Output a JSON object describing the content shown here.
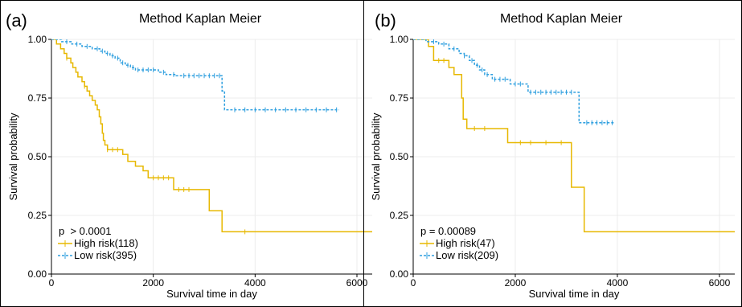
{
  "figure": {
    "panels": [
      {
        "letter": "(a)"
      },
      {
        "letter": "(b)"
      }
    ]
  },
  "colors": {
    "high_risk": "#E7B800",
    "low_risk": "#2E9FDF",
    "grid": "#ececec",
    "axis": "#000000"
  },
  "chart_data": [
    {
      "type": "line",
      "subtype": "kaplan-meier",
      "title": "Method Kaplan Meier",
      "xlabel": "Survival time in day",
      "ylabel": "Survival probability",
      "xlim": [
        0,
        6300
      ],
      "ylim": [
        0,
        1.0
      ],
      "x_ticks": [
        0,
        2000,
        4000,
        6000
      ],
      "x_tick_labels": [
        "0",
        "2000",
        "4000",
        "6000"
      ],
      "y_ticks": [
        0,
        0.25,
        0.5,
        0.75,
        1.0
      ],
      "y_tick_labels": [
        "0.00",
        "0.25",
        "0.50",
        "0.75",
        "1.00"
      ],
      "grid": true,
      "legend_position": "bottom-left",
      "annotation": "p  > 0.0001",
      "series": [
        {
          "name": "High risk(118)",
          "color": "#E7B800",
          "dash": "solid",
          "steps": [
            [
              0,
              1.0
            ],
            [
              100,
              0.98
            ],
            [
              180,
              0.96
            ],
            [
              250,
              0.94
            ],
            [
              300,
              0.92
            ],
            [
              380,
              0.9
            ],
            [
              420,
              0.88
            ],
            [
              480,
              0.86
            ],
            [
              520,
              0.84
            ],
            [
              600,
              0.82
            ],
            [
              650,
              0.8
            ],
            [
              700,
              0.78
            ],
            [
              750,
              0.76
            ],
            [
              800,
              0.74
            ],
            [
              860,
              0.72
            ],
            [
              900,
              0.7
            ],
            [
              940,
              0.67
            ],
            [
              970,
              0.64
            ],
            [
              1000,
              0.6
            ],
            [
              1020,
              0.57
            ],
            [
              1050,
              0.55
            ],
            [
              1100,
              0.53
            ],
            [
              1400,
              0.51
            ],
            [
              1500,
              0.48
            ],
            [
              1650,
              0.46
            ],
            [
              1800,
              0.44
            ],
            [
              1900,
              0.41
            ],
            [
              2400,
              0.36
            ],
            [
              3100,
              0.27
            ],
            [
              3350,
              0.18
            ],
            [
              6300,
              0.18
            ]
          ],
          "censor": [
            [
              300,
              0.92
            ],
            [
              650,
              0.8
            ],
            [
              1100,
              0.53
            ],
            [
              1200,
              0.53
            ],
            [
              1300,
              0.53
            ],
            [
              2000,
              0.41
            ],
            [
              2100,
              0.41
            ],
            [
              2200,
              0.41
            ],
            [
              2300,
              0.41
            ],
            [
              2500,
              0.36
            ],
            [
              2600,
              0.36
            ],
            [
              2700,
              0.36
            ],
            [
              3800,
              0.18
            ]
          ]
        },
        {
          "name": "Low risk(395)",
          "color": "#2E9FDF",
          "dash": "dashed",
          "steps": [
            [
              0,
              1.0
            ],
            [
              200,
              0.99
            ],
            [
              400,
              0.98
            ],
            [
              600,
              0.97
            ],
            [
              800,
              0.96
            ],
            [
              950,
              0.95
            ],
            [
              1050,
              0.94
            ],
            [
              1150,
              0.93
            ],
            [
              1250,
              0.92
            ],
            [
              1350,
              0.9
            ],
            [
              1450,
              0.89
            ],
            [
              1550,
              0.88
            ],
            [
              1650,
              0.87
            ],
            [
              2100,
              0.86
            ],
            [
              2250,
              0.85
            ],
            [
              2450,
              0.845
            ],
            [
              3350,
              0.78
            ],
            [
              3400,
              0.7
            ],
            [
              5650,
              0.7
            ]
          ],
          "censor": [
            [
              300,
              0.99
            ],
            [
              500,
              0.98
            ],
            [
              700,
              0.97
            ],
            [
              900,
              0.96
            ],
            [
              1000,
              0.95
            ],
            [
              1100,
              0.94
            ],
            [
              1200,
              0.93
            ],
            [
              1300,
              0.92
            ],
            [
              1400,
              0.9
            ],
            [
              1500,
              0.89
            ],
            [
              1600,
              0.88
            ],
            [
              1700,
              0.87
            ],
            [
              1800,
              0.87
            ],
            [
              1900,
              0.87
            ],
            [
              2000,
              0.87
            ],
            [
              2200,
              0.86
            ],
            [
              2400,
              0.85
            ],
            [
              2600,
              0.845
            ],
            [
              2700,
              0.845
            ],
            [
              2800,
              0.845
            ],
            [
              2900,
              0.845
            ],
            [
              3000,
              0.845
            ],
            [
              3100,
              0.845
            ],
            [
              3200,
              0.845
            ],
            [
              3300,
              0.845
            ],
            [
              3600,
              0.7
            ],
            [
              3800,
              0.7
            ],
            [
              4000,
              0.7
            ],
            [
              4200,
              0.7
            ],
            [
              4400,
              0.7
            ],
            [
              4600,
              0.7
            ],
            [
              4800,
              0.7
            ],
            [
              5000,
              0.7
            ],
            [
              5200,
              0.7
            ],
            [
              5400,
              0.7
            ],
            [
              5600,
              0.7
            ]
          ]
        }
      ]
    },
    {
      "type": "line",
      "subtype": "kaplan-meier",
      "title": "Method Kaplan Meier",
      "xlabel": "Survival time in day",
      "ylabel": "Survival probability",
      "xlim": [
        0,
        6300
      ],
      "ylim": [
        0,
        1.0
      ],
      "x_ticks": [
        0,
        2000,
        4000,
        6000
      ],
      "x_tick_labels": [
        "0",
        "2000",
        "4000",
        "6000"
      ],
      "y_ticks": [
        0,
        0.25,
        0.5,
        0.75,
        1.0
      ],
      "y_tick_labels": [
        "0.00",
        "0.25",
        "0.50",
        "0.75",
        "1.00"
      ],
      "grid": true,
      "legend_position": "bottom-left",
      "annotation": "p = 0.00089",
      "series": [
        {
          "name": "High risk(47)",
          "color": "#E7B800",
          "dash": "solid",
          "steps": [
            [
              0,
              1.0
            ],
            [
              300,
              0.97
            ],
            [
              400,
              0.91
            ],
            [
              700,
              0.88
            ],
            [
              800,
              0.85
            ],
            [
              950,
              0.75
            ],
            [
              980,
              0.66
            ],
            [
              1050,
              0.62
            ],
            [
              1850,
              0.56
            ],
            [
              3100,
              0.37
            ],
            [
              3350,
              0.18
            ],
            [
              6300,
              0.18
            ]
          ],
          "censor": [
            [
              500,
              0.91
            ],
            [
              600,
              0.91
            ],
            [
              1200,
              0.62
            ],
            [
              1400,
              0.62
            ],
            [
              2100,
              0.56
            ],
            [
              2300,
              0.56
            ],
            [
              2600,
              0.56
            ],
            [
              2900,
              0.56
            ]
          ]
        },
        {
          "name": "Low risk(209)",
          "color": "#2E9FDF",
          "dash": "dashed",
          "steps": [
            [
              0,
              1.0
            ],
            [
              250,
              0.99
            ],
            [
              500,
              0.98
            ],
            [
              700,
              0.96
            ],
            [
              900,
              0.94
            ],
            [
              1000,
              0.93
            ],
            [
              1100,
              0.91
            ],
            [
              1200,
              0.89
            ],
            [
              1300,
              0.87
            ],
            [
              1400,
              0.85
            ],
            [
              1550,
              0.83
            ],
            [
              1900,
              0.81
            ],
            [
              2250,
              0.775
            ],
            [
              3250,
              0.645
            ],
            [
              3950,
              0.645
            ]
          ],
          "censor": [
            [
              400,
              0.99
            ],
            [
              600,
              0.98
            ],
            [
              800,
              0.96
            ],
            [
              1000,
              0.93
            ],
            [
              1150,
              0.91
            ],
            [
              1250,
              0.89
            ],
            [
              1350,
              0.87
            ],
            [
              1450,
              0.85
            ],
            [
              1600,
              0.83
            ],
            [
              1700,
              0.83
            ],
            [
              1800,
              0.83
            ],
            [
              2000,
              0.81
            ],
            [
              2100,
              0.81
            ],
            [
              2300,
              0.775
            ],
            [
              2400,
              0.775
            ],
            [
              2500,
              0.775
            ],
            [
              2600,
              0.775
            ],
            [
              2700,
              0.775
            ],
            [
              2800,
              0.775
            ],
            [
              2900,
              0.775
            ],
            [
              3000,
              0.775
            ],
            [
              3100,
              0.775
            ],
            [
              3400,
              0.645
            ],
            [
              3500,
              0.645
            ],
            [
              3600,
              0.645
            ],
            [
              3700,
              0.645
            ],
            [
              3800,
              0.645
            ],
            [
              3900,
              0.645
            ]
          ]
        }
      ]
    }
  ]
}
